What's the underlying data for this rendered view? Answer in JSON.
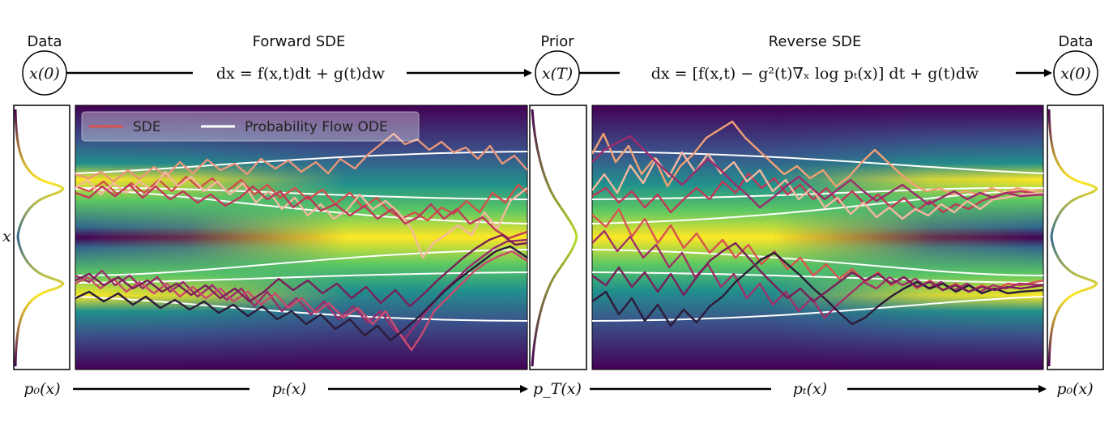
{
  "headers": {
    "data_left": "Data",
    "forward": "Forward SDE",
    "prior": "Prior",
    "reverse": "Reverse SDE",
    "data_right": "Data"
  },
  "nodes": {
    "start": "x(0)",
    "middle": "x(T)",
    "end": "x(0)"
  },
  "equations": {
    "forward": "dx = f(x,t)dt + g(t)dw",
    "reverse": "dx = [f(x,t) − g²(t)∇ₓ log pₜ(x)] dt + g(t)dw̄"
  },
  "axis_label": "x",
  "bottom": {
    "p0_left": "p₀(x)",
    "pt_left": "pₜ(x)",
    "pT": "p_T(x)",
    "pt_right": "pₜ(x)",
    "p0_right": "p₀(x)"
  },
  "legend": {
    "sde": "SDE",
    "ode": "Probability Flow ODE"
  },
  "colors": {
    "sde_legend": "#d9534f",
    "ode_legend": "#ffffff",
    "density_low": "#440154",
    "density_high": "#fde725"
  }
}
